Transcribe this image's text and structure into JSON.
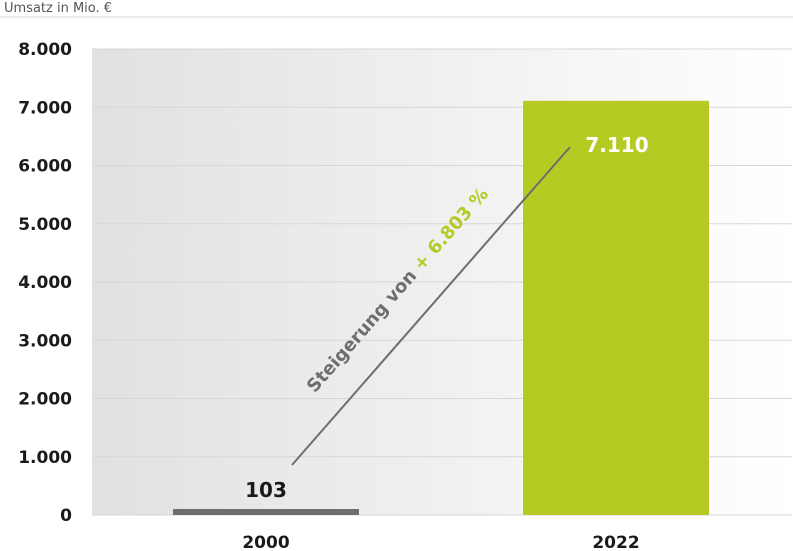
{
  "chart_data": {
    "type": "bar",
    "unit_label": "Umsatz in Mio. €",
    "categories": [
      "2000",
      "2022"
    ],
    "values": [
      103,
      7110
    ],
    "value_labels": [
      "103",
      "7.110"
    ],
    "ylim": [
      0,
      8000
    ],
    "yticks": [
      0,
      1000,
      2000,
      3000,
      4000,
      5000,
      6000,
      7000,
      8000
    ],
    "ytick_labels": [
      "0",
      "1.000",
      "2.000",
      "3.000",
      "4.000",
      "5.000",
      "6.000",
      "7.000",
      "8.000"
    ],
    "grid": true,
    "annotation": {
      "prefix": "Steigerung von ",
      "highlight": "+ 6.803 %"
    },
    "colors": {
      "bar_2000": "#6e6e6e",
      "bar_2022": "#b5cb24",
      "highlight": "#b5cb24",
      "annotation_text": "#6e6e6e",
      "label_2000": "#1a1a1a",
      "label_2022": "#ffffff",
      "background_left": "#e1e1e1",
      "background_right": "#ffffff",
      "grid": "#d7d7d7"
    }
  }
}
